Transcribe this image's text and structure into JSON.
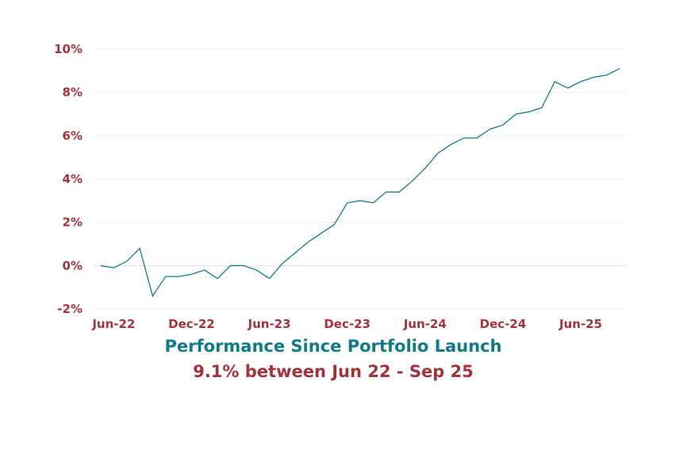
{
  "chart_data": {
    "type": "line",
    "title": "Performance Since Portfolio Launch",
    "subtitle": "9.1% between Jun 22 - Sep 25",
    "xlabel": "",
    "ylabel": "",
    "ylim": [
      -2,
      10
    ],
    "yticks": [
      -2,
      0,
      2,
      4,
      6,
      8,
      10
    ],
    "ytick_labels": [
      "-2%",
      "0%",
      "2%",
      "4%",
      "6%",
      "8%",
      "10%"
    ],
    "xtick_labels": [
      "Jun-22",
      "Dec-22",
      "Jun-23",
      "Dec-23",
      "Jun-24",
      "Dec-24",
      "Jun-25"
    ],
    "xtick_indices": [
      1,
      7,
      13,
      19,
      25,
      31,
      37
    ],
    "grid": true,
    "series": [
      {
        "name": "Performance",
        "color": "#0e7c86",
        "values": [
          0,
          -0.1,
          0.2,
          0.8,
          -1.4,
          -0.5,
          -0.5,
          -0.4,
          -0.2,
          -0.6,
          0,
          0,
          -0.2,
          -0.6,
          0.1,
          0.6,
          1.1,
          1.5,
          1.9,
          2.9,
          3.0,
          2.9,
          3.4,
          3.4,
          3.9,
          4.5,
          5.2,
          5.6,
          5.9,
          5.9,
          6.3,
          6.5,
          7.0,
          7.1,
          7.3,
          8.5,
          8.2,
          8.5,
          8.7,
          8.8,
          9.1
        ]
      }
    ]
  },
  "colors": {
    "line": "#0e7c86",
    "label": "#a4323b",
    "grid": "#eeeeee"
  }
}
